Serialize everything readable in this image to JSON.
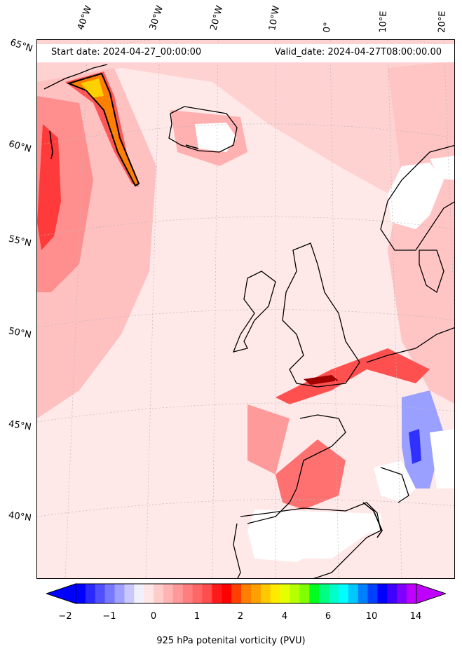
{
  "header": {
    "start_date": "Start date: 2024-04-27_00:00:00",
    "valid_date": "Valid_date: 2024-04-27T08:00:00.00"
  },
  "lon_labels": [
    "40°W",
    "30°W",
    "20°W",
    "10°W",
    "0°",
    "10°E",
    "20°E"
  ],
  "lat_labels": [
    "65°N",
    "60°N",
    "55°N",
    "50°N",
    "45°N",
    "40°N"
  ],
  "colorbar": {
    "label": "925 hPa potenital vorticity (PVU)",
    "ticks": [
      "−2",
      "−1",
      "0",
      "1",
      "2",
      "4",
      "6",
      "10",
      "14"
    ],
    "colors": [
      "#0000ff",
      "#2828ff",
      "#5050ff",
      "#7878ff",
      "#a0a0ff",
      "#c8c8ff",
      "#f0f0ff",
      "#ffe6e6",
      "#ffcccc",
      "#ffb3b3",
      "#ff9999",
      "#ff7f7f",
      "#ff6666",
      "#ff4c4c",
      "#ff1a1a",
      "#ff0000",
      "#ff4000",
      "#ff7f00",
      "#ffa000",
      "#ffc800",
      "#ffea00",
      "#e6ff00",
      "#b4ff00",
      "#7fff00",
      "#00ff20",
      "#00ff80",
      "#00ffc8",
      "#00ffff",
      "#00c8ff",
      "#0080ff",
      "#0040ff",
      "#0000ff",
      "#4000ff",
      "#8000ff",
      "#c000ff"
    ],
    "extend": "both"
  }
}
